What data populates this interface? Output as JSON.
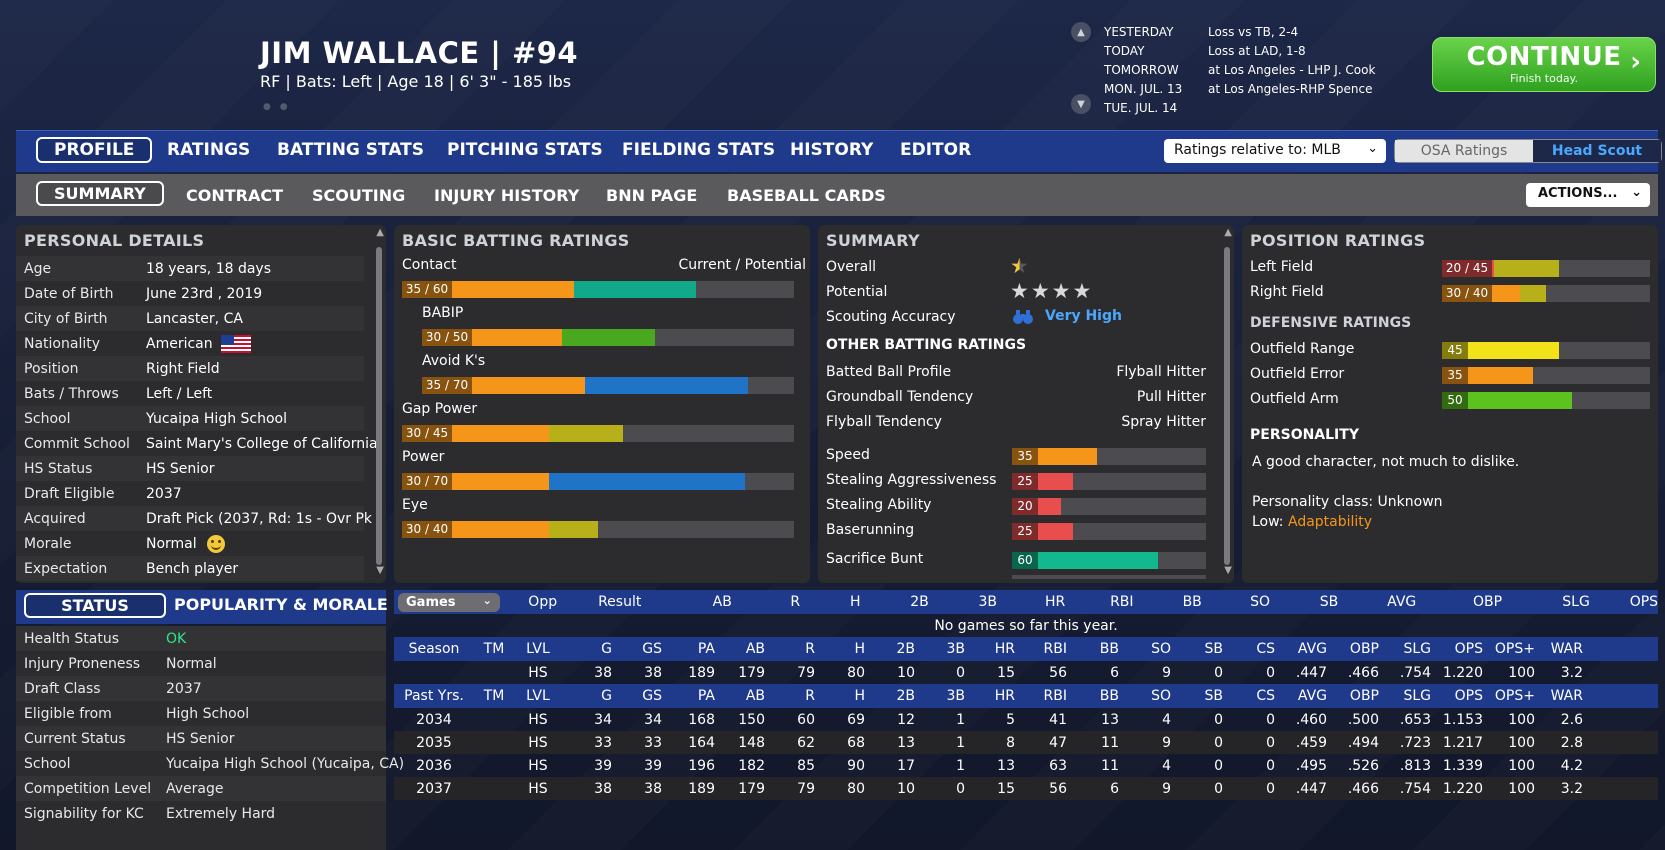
{
  "player": {
    "name_line": "JIM WALLACE  |  #94",
    "sub_line": "RF | Bats: Left  |  Age 18  |  6' 3\" - 185 lbs",
    "tiny_icons": "● ●"
  },
  "schedule": [
    {
      "day": "YESTERDAY",
      "result": "Loss vs TB, 2-4"
    },
    {
      "day": "TODAY",
      "result": "Loss at LAD, 1-8"
    },
    {
      "day": "TOMORROW",
      "result": "at Los Angeles - LHP J. Cook"
    },
    {
      "day": "MON. JUL. 13",
      "result": "at Los Angeles-RHP Spence"
    },
    {
      "day": "TUE. JUL. 14",
      "result": ""
    }
  ],
  "continue": {
    "label": "CONTINUE",
    "sub": "Finish today.",
    "arrow": "›"
  },
  "main_tabs": [
    "PROFILE",
    "RATINGS",
    "BATTING STATS",
    "PITCHING STATS",
    "FIELDING STATS",
    "HISTORY",
    "EDITOR"
  ],
  "ratings_relative": "Ratings relative to: MLB",
  "rating_sources": {
    "a": "OSA Ratings",
    "b": "Head Scout"
  },
  "sub_tabs": [
    "SUMMARY",
    "CONTRACT",
    "SCOUTING",
    "INJURY HISTORY",
    "BNN PAGE",
    "BASEBALL CARDS"
  ],
  "actions_label": "ACTIONS...",
  "personal": {
    "title": "PERSONAL DETAILS",
    "rows": [
      {
        "k": "Age",
        "v": "18 years, 18 days"
      },
      {
        "k": "Date of Birth",
        "v": "June 23rd , 2019"
      },
      {
        "k": "City of Birth",
        "v": "Lancaster, CA"
      },
      {
        "k": "Nationality",
        "v": "American"
      },
      {
        "k": "Position",
        "v": "Right Field"
      },
      {
        "k": "Bats / Throws",
        "v": "Left / Left"
      },
      {
        "k": "School",
        "v": "Yucaipa High School"
      },
      {
        "k": "Commit School",
        "v": "Saint Mary's College of California"
      },
      {
        "k": "HS Status",
        "v": "HS Senior"
      },
      {
        "k": "Draft Eligible",
        "v": "2037"
      },
      {
        "k": "Acquired",
        "v": "Draft Pick (2037, Rd: 1s - Ovr Pk"
      },
      {
        "k": "Morale",
        "v": "Normal"
      },
      {
        "k": "Expectation",
        "v": "Bench player"
      }
    ]
  },
  "batting": {
    "title": "BASIC BATTING RATINGS",
    "cp_label": "Current / Potential",
    "ratings": [
      {
        "label": "Contact",
        "text": "35 / 60",
        "cur": 35,
        "pot": 60,
        "cur_color": "#f5961a",
        "pot_color": "#12a88a"
      },
      {
        "label": "BABIP",
        "text": "30 / 50",
        "cur": 30,
        "pot": 50,
        "cur_color": "#f5961a",
        "pot_color": "#4aa820"
      },
      {
        "label": "Avoid K's",
        "text": "35 / 70",
        "cur": 35,
        "pot": 70,
        "cur_color": "#f5961a",
        "pot_color": "#1f74c8"
      },
      {
        "label": "Gap Power",
        "text": "30 / 45",
        "cur": 30,
        "pot": 45,
        "cur_color": "#f5961a",
        "pot_color": "#b8b01a"
      },
      {
        "label": "Power",
        "text": "30 / 70",
        "cur": 30,
        "pot": 70,
        "cur_color": "#f5961a",
        "pot_color": "#1f74c8"
      },
      {
        "label": "Eye",
        "text": "30 / 40",
        "cur": 30,
        "pot": 40,
        "cur_color": "#f5961a",
        "pot_color": "#b8b01a"
      }
    ]
  },
  "summary": {
    "title": "SUMMARY",
    "overall_label": "Overall",
    "overall_stars": 0.5,
    "potential_label": "Potential",
    "potential_stars": 4,
    "scouting_label": "Scouting Accuracy",
    "scouting_value": "Very High",
    "other_title": "OTHER BATTING RATINGS",
    "other": [
      {
        "k": "Batted Ball Profile",
        "v": "Flyball Hitter"
      },
      {
        "k": "Groundball Tendency",
        "v": "Pull Hitter"
      },
      {
        "k": "Flyball Tendency",
        "v": "Spray Hitter"
      }
    ],
    "speed": [
      {
        "label": "Speed",
        "value": 35,
        "color": "#f5961a"
      },
      {
        "label": "Stealing Aggressiveness",
        "value": 25,
        "color": "#e84e4e"
      },
      {
        "label": "Stealing Ability",
        "value": 20,
        "color": "#e84e4e"
      },
      {
        "label": "Baserunning",
        "value": 25,
        "color": "#e84e4e"
      },
      {
        "label": "Sacrifice Bunt",
        "value": 60,
        "color": "#12b88e"
      }
    ]
  },
  "position": {
    "title": "POSITION RATINGS",
    "positions": [
      {
        "label": "Left Field",
        "text": "20 / 45",
        "cur": 20,
        "pot": 45,
        "cur_color": "#e84e4e",
        "pot_color": "#b8b01a"
      },
      {
        "label": "Right Field",
        "text": "30 / 40",
        "cur": 30,
        "pot": 40,
        "cur_color": "#f5961a",
        "pot_color": "#b8b01a"
      }
    ],
    "def_title": "DEFENSIVE RATINGS",
    "defense": [
      {
        "label": "Outfield Range",
        "value": 45,
        "color": "#f2e21a"
      },
      {
        "label": "Outfield Error",
        "value": 35,
        "color": "#f5961a"
      },
      {
        "label": "Outfield Arm",
        "value": 50,
        "color": "#5cc21e"
      }
    ],
    "pers_title": "PERSONALITY",
    "pers_desc": "A good character, not much to dislike.",
    "pers_class": "Personality class: Unknown",
    "low_label": "Low:",
    "low_value": "Adaptability"
  },
  "status": {
    "tab_status": "STATUS",
    "tab_pop": "POPULARITY & MORALE",
    "rows": [
      {
        "k": "Health Status",
        "v": "OK"
      },
      {
        "k": "Injury Proneness",
        "v": "Normal"
      },
      {
        "k": "Draft Class",
        "v": "2037"
      },
      {
        "k": "Eligible from",
        "v": "High School"
      },
      {
        "k": "Current Status",
        "v": "HS Senior"
      },
      {
        "k": "School",
        "v": "Yucaipa High School (Yucaipa, CA)"
      },
      {
        "k": "Competition Level",
        "v": "Average"
      },
      {
        "k": "Signability for KC",
        "v": "Extremely Hard"
      }
    ]
  },
  "games": {
    "select": "Games",
    "headers": [
      "Opp",
      "Result",
      "AB",
      "R",
      "H",
      "2B",
      "3B",
      "HR",
      "RBI",
      "BB",
      "SO",
      "SB",
      "AVG",
      "OBP",
      "SLG",
      "OPS"
    ],
    "empty": "No games so far this year."
  },
  "season": {
    "headers": [
      "Season",
      "TM",
      "LVL",
      "G",
      "GS",
      "PA",
      "AB",
      "R",
      "H",
      "2B",
      "3B",
      "HR",
      "RBI",
      "BB",
      "SO",
      "SB",
      "CS",
      "AVG",
      "OBP",
      "SLG",
      "OPS",
      "OPS+",
      "WAR"
    ],
    "rows": [
      [
        "",
        "",
        "HS",
        "38",
        "38",
        "189",
        "179",
        "79",
        "80",
        "10",
        "0",
        "15",
        "56",
        "6",
        "9",
        "0",
        "0",
        ".447",
        ".466",
        ".754",
        "1.220",
        "100",
        "3.2"
      ]
    ]
  },
  "past": {
    "headers": [
      "Past Yrs.",
      "TM",
      "LVL",
      "G",
      "GS",
      "PA",
      "AB",
      "R",
      "H",
      "2B",
      "3B",
      "HR",
      "RBI",
      "BB",
      "SO",
      "SB",
      "CS",
      "AVG",
      "OBP",
      "SLG",
      "OPS",
      "OPS+",
      "WAR"
    ],
    "rows": [
      [
        "2034",
        "",
        "HS",
        "34",
        "34",
        "168",
        "150",
        "60",
        "69",
        "12",
        "1",
        "5",
        "41",
        "13",
        "4",
        "0",
        "0",
        ".460",
        ".500",
        ".653",
        "1.153",
        "100",
        "2.6"
      ],
      [
        "2035",
        "",
        "HS",
        "33",
        "33",
        "164",
        "148",
        "62",
        "68",
        "13",
        "1",
        "8",
        "47",
        "11",
        "9",
        "0",
        "0",
        ".459",
        ".494",
        ".723",
        "1.217",
        "100",
        "2.8"
      ],
      [
        "2036",
        "",
        "HS",
        "39",
        "39",
        "196",
        "182",
        "85",
        "90",
        "17",
        "1",
        "13",
        "63",
        "11",
        "4",
        "0",
        "0",
        ".495",
        ".526",
        ".813",
        "1.339",
        "100",
        "4.2"
      ],
      [
        "2037",
        "",
        "HS",
        "38",
        "38",
        "189",
        "179",
        "79",
        "80",
        "10",
        "0",
        "15",
        "56",
        "6",
        "9",
        "0",
        "0",
        ".447",
        ".466",
        ".754",
        "1.220",
        "100",
        "3.2"
      ]
    ]
  },
  "colors": {
    "ok": "#2ee58a",
    "scouting": "#4aa8ff",
    "low": "#f5961a"
  }
}
